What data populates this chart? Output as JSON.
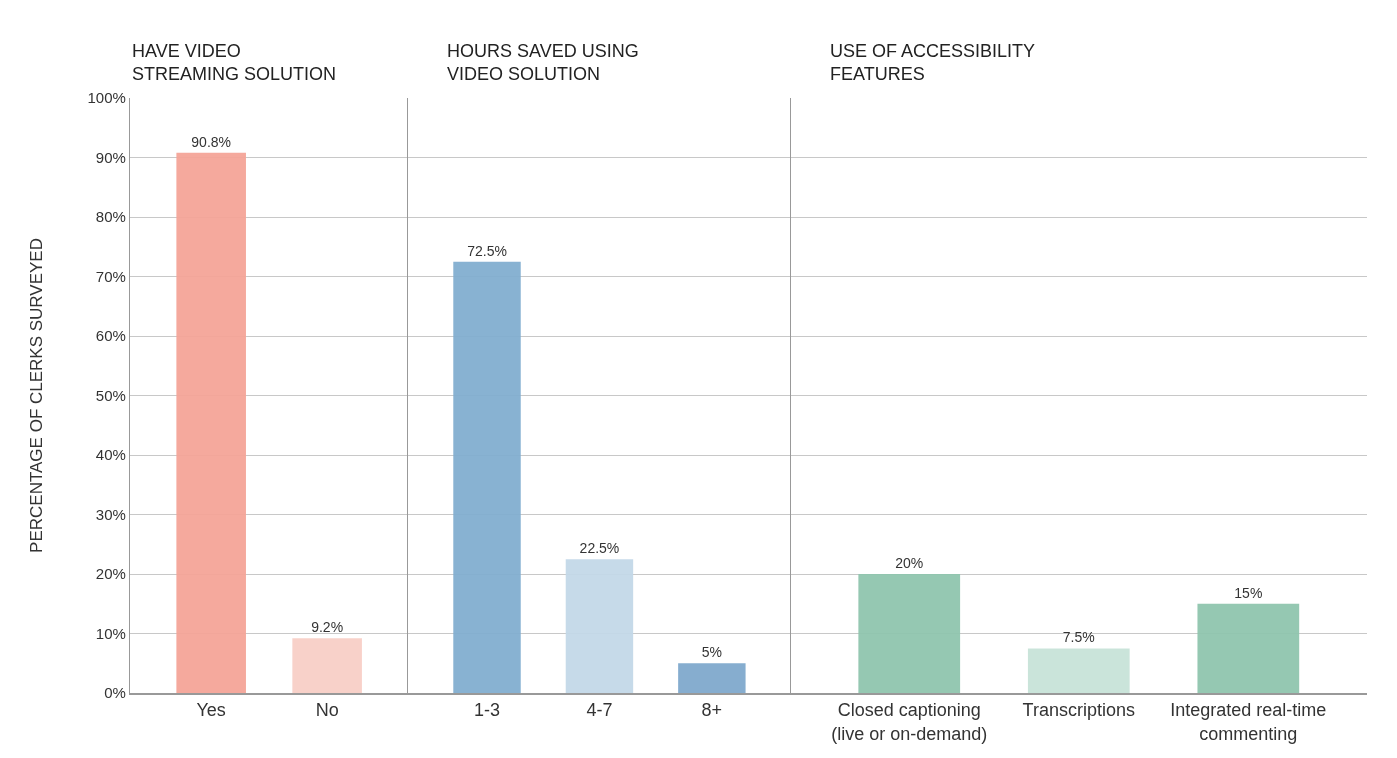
{
  "chart_data": [
    {
      "type": "bar",
      "title": "HAVE VIDEO\nSTREAMING SOLUTION",
      "ylabel": "PERCENTAGE OF CLERKS SURVEYED",
      "categories": [
        "Yes",
        "No"
      ],
      "values": [
        90.8,
        9.2
      ],
      "colors": [
        "#f4a498",
        "#f8cfc6"
      ],
      "value_labels": [
        "90.8%",
        "9.2%"
      ],
      "ylim": [
        0,
        100
      ],
      "yticks": [
        {
          "value": 0,
          "label": "0%"
        },
        {
          "value": 10,
          "label": "10%"
        },
        {
          "value": 20,
          "label": "20%"
        },
        {
          "value": 30,
          "label": "30%"
        },
        {
          "value": 40,
          "label": "40%"
        },
        {
          "value": 50,
          "label": "50%"
        },
        {
          "value": 60,
          "label": "60%"
        },
        {
          "value": 70,
          "label": "70%"
        },
        {
          "value": 80,
          "label": "80%"
        },
        {
          "value": 90,
          "label": "90%"
        },
        {
          "value": 100,
          "label": "100%"
        }
      ],
      "grid": "y",
      "legend": false
    },
    {
      "type": "bar",
      "title": "HOURS SAVED USING\nVIDEO SOLUTION",
      "categories": [
        "1-3",
        "4-7",
        "8+"
      ],
      "values": [
        72.5,
        22.5,
        5
      ],
      "colors": [
        "#82aed0",
        "#c3d8e8",
        "#7fa9cc"
      ],
      "value_labels": [
        "72.5%",
        "22.5%",
        "5%"
      ],
      "ylim": [
        0,
        100
      ],
      "yticks": [
        0,
        10,
        20,
        30,
        40,
        50,
        60,
        70,
        80,
        90,
        100
      ],
      "grid": "y",
      "legend": false,
      "tick_labels": "x"
    },
    {
      "type": "bar",
      "title": "USE OF ACCESSIBILITY\nFEATURES",
      "categories": [
        "Closed captioning\n(live or on-demand)",
        "Transcriptions",
        "Integrated real-time\ncommenting"
      ],
      "values": [
        20,
        7.5,
        15
      ],
      "colors": [
        "#8fc5ae",
        "#c7e3d8",
        "#8fc5ae"
      ],
      "value_labels": [
        "20%",
        "7.5%",
        "15%"
      ],
      "ylim": [
        0,
        100
      ],
      "yticks": [
        0,
        10,
        20,
        30,
        40,
        50,
        60,
        70,
        80,
        90,
        100
      ],
      "grid": "y",
      "legend": false,
      "tick_labels": "x"
    }
  ]
}
